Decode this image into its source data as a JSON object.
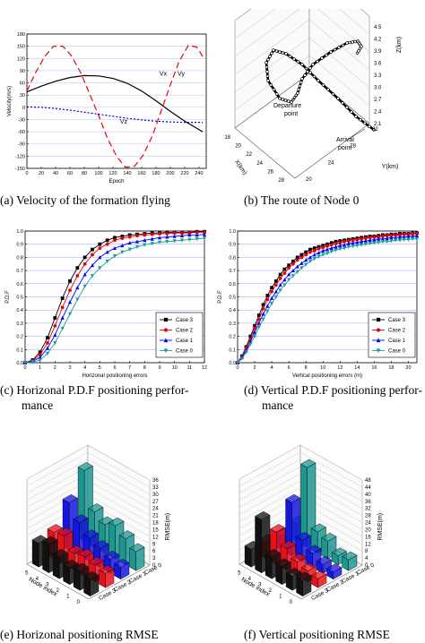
{
  "captions": {
    "a": "(a) Velocity of the formation flying",
    "b": "(b) The route of Node 0",
    "c1": "(c) Horizonal P.D.F positioning perfor-",
    "c2": "mance",
    "d1": "(d) Vertical P.D.F positioning perfor-",
    "d2": "mance",
    "e": "(e) Horizonal positioning RMSE",
    "f": "(f) Vertical positioning RMSE"
  },
  "chart_data": [
    {
      "id": "a",
      "type": "line",
      "xlabel": "Epoch",
      "ylabel": "Velocity(m/s)",
      "xlim": [
        0,
        250
      ],
      "ylim": [
        -150,
        180
      ],
      "xticks": [
        0,
        20,
        40,
        60,
        80,
        100,
        120,
        140,
        160,
        180,
        200,
        220,
        240
      ],
      "yticks": [
        -150,
        -120,
        -90,
        -60,
        -30,
        0,
        30,
        60,
        90,
        120,
        150,
        180
      ],
      "series": [
        {
          "name": "Vx",
          "color": "#000000",
          "dash": "",
          "x": [
            0,
            20,
            40,
            60,
            80,
            100,
            120,
            140,
            160,
            180,
            200,
            220,
            245
          ],
          "y": [
            38,
            52,
            64,
            73,
            78,
            77,
            71,
            59,
            40,
            16,
            -10,
            -34,
            -60
          ]
        },
        {
          "name": "Vy",
          "color": "#e8000b",
          "dash": "7,4",
          "x": [
            0,
            12,
            25,
            37,
            50,
            62,
            75,
            87,
            100,
            112,
            125,
            137,
            150,
            162,
            175,
            187,
            200,
            212,
            225,
            237,
            245
          ],
          "y": [
            40,
            85,
            125,
            150,
            150,
            127,
            85,
            35,
            -20,
            -75,
            -120,
            -147,
            -145,
            -118,
            -70,
            -10,
            55,
            112,
            152,
            148,
            125
          ]
        },
        {
          "name": "Vz",
          "color": "#0000cc",
          "dash": "2,2",
          "x": [
            0,
            20,
            40,
            60,
            80,
            100,
            120,
            140,
            160,
            180,
            200,
            220,
            245
          ],
          "y": [
            1,
            0,
            -3,
            -7,
            -12,
            -17,
            -22,
            -27,
            -31,
            -34,
            -36,
            -37,
            -37
          ]
        }
      ],
      "labels": [
        {
          "text": "Vx",
          "x": 190,
          "y": 78
        },
        {
          "text": "Vy",
          "x": 215,
          "y": 78
        },
        {
          "text": "Vz",
          "x": 135,
          "y": -40
        }
      ]
    },
    {
      "id": "b",
      "type": "line3d",
      "xlabel": "X(km)",
      "ylabel": "Y(km)",
      "zlabel": "Z(km)",
      "xticks": [
        "18",
        "20",
        "22",
        "24",
        "26",
        "28"
      ],
      "yticks": [
        "20",
        "24",
        "28",
        "32"
      ],
      "zticks": [
        "2.1",
        "2.4",
        "2.7",
        "3.0",
        "3.3",
        "3.6",
        "3.9",
        "4.2",
        "4.5"
      ],
      "annotations": [
        "Departure point",
        "Arrival point"
      ]
    },
    {
      "id": "c",
      "type": "line",
      "xlabel": "Horizonal positioning errors",
      "ylabel": "P.D.F",
      "xlim": [
        0,
        12
      ],
      "ylim": [
        0,
        1
      ],
      "xticks": [
        0,
        1,
        2,
        3,
        4,
        5,
        6,
        7,
        8,
        9,
        10,
        11,
        12
      ],
      "yticks": [
        0.0,
        0.1,
        0.2,
        0.3,
        0.4,
        0.5,
        0.6,
        0.7,
        0.8,
        0.9,
        1.0
      ],
      "x": [
        0,
        0.5,
        1,
        1.5,
        2,
        2.5,
        3,
        3.5,
        4,
        4.5,
        5,
        5.5,
        6,
        6.5,
        7,
        7.5,
        8,
        8.5,
        9,
        9.5,
        10,
        10.5,
        11,
        11.5,
        12
      ],
      "series": [
        {
          "name": "Case 3",
          "color": "#000000",
          "marker": "square",
          "values": [
            0,
            0.02,
            0.08,
            0.19,
            0.34,
            0.49,
            0.62,
            0.72,
            0.8,
            0.86,
            0.9,
            0.93,
            0.95,
            0.96,
            0.97,
            0.975,
            0.98,
            0.985,
            0.985,
            0.99,
            0.99,
            0.99,
            0.99,
            0.995,
            0.995
          ]
        },
        {
          "name": "Case 2",
          "color": "#e8000b",
          "marker": "circle",
          "values": [
            0,
            0.015,
            0.06,
            0.15,
            0.28,
            0.42,
            0.55,
            0.66,
            0.75,
            0.82,
            0.87,
            0.9,
            0.93,
            0.945,
            0.955,
            0.965,
            0.97,
            0.975,
            0.98,
            0.98,
            0.985,
            0.985,
            0.985,
            0.99,
            0.99
          ]
        },
        {
          "name": "Case 1",
          "color": "#0000ff",
          "marker": "triangle",
          "values": [
            0,
            0.01,
            0.04,
            0.11,
            0.21,
            0.34,
            0.46,
            0.57,
            0.67,
            0.74,
            0.8,
            0.84,
            0.87,
            0.89,
            0.91,
            0.92,
            0.93,
            0.94,
            0.95,
            0.955,
            0.96,
            0.965,
            0.97,
            0.97,
            0.975
          ]
        },
        {
          "name": "Case 0",
          "color": "#1a9c9c",
          "marker": "tridown",
          "values": [
            0,
            0.005,
            0.02,
            0.07,
            0.15,
            0.26,
            0.37,
            0.48,
            0.58,
            0.66,
            0.72,
            0.77,
            0.81,
            0.84,
            0.86,
            0.88,
            0.895,
            0.905,
            0.915,
            0.92,
            0.925,
            0.93,
            0.935,
            0.94,
            0.945
          ]
        }
      ]
    },
    {
      "id": "d",
      "type": "line",
      "xlabel": "Vertical positioning errors (m)",
      "ylabel": "P.D.F",
      "xlim": [
        0,
        21
      ],
      "ylim": [
        0,
        1
      ],
      "xticks": [
        0,
        2,
        4,
        6,
        8,
        10,
        12,
        14,
        16,
        18,
        20
      ],
      "yticks": [
        0.0,
        0.1,
        0.2,
        0.3,
        0.4,
        0.5,
        0.6,
        0.7,
        0.8,
        0.9,
        1.0
      ],
      "x": [
        0,
        0.5,
        1,
        1.5,
        2,
        2.5,
        3,
        3.5,
        4,
        4.5,
        5,
        5.5,
        6,
        6.5,
        7,
        7.5,
        8,
        8.5,
        9,
        9.5,
        10,
        10.5,
        11,
        11.5,
        12,
        12.5,
        13,
        13.5,
        14,
        14.5,
        15,
        15.5,
        16,
        16.5,
        17,
        17.5,
        18,
        18.5,
        19,
        19.5,
        20,
        20.5,
        21
      ],
      "series": [
        {
          "name": "Case 3",
          "color": "#000000",
          "marker": "square",
          "values": [
            0,
            0.05,
            0.12,
            0.2,
            0.28,
            0.36,
            0.44,
            0.51,
            0.57,
            0.62,
            0.67,
            0.71,
            0.74,
            0.77,
            0.8,
            0.82,
            0.84,
            0.86,
            0.87,
            0.88,
            0.89,
            0.9,
            0.91,
            0.92,
            0.925,
            0.93,
            0.935,
            0.94,
            0.945,
            0.95,
            0.955,
            0.96,
            0.96,
            0.965,
            0.97,
            0.97,
            0.975,
            0.975,
            0.98,
            0.98,
            0.98,
            0.985,
            0.985
          ]
        },
        {
          "name": "Case 2",
          "color": "#e8000b",
          "marker": "circle",
          "values": [
            0,
            0.045,
            0.11,
            0.18,
            0.26,
            0.33,
            0.41,
            0.48,
            0.54,
            0.59,
            0.64,
            0.68,
            0.72,
            0.75,
            0.78,
            0.8,
            0.82,
            0.84,
            0.85,
            0.865,
            0.875,
            0.885,
            0.895,
            0.905,
            0.91,
            0.92,
            0.925,
            0.93,
            0.935,
            0.94,
            0.945,
            0.95,
            0.955,
            0.955,
            0.96,
            0.965,
            0.965,
            0.97,
            0.97,
            0.975,
            0.975,
            0.98,
            0.98
          ]
        },
        {
          "name": "Case 1",
          "color": "#0000ff",
          "marker": "triangle",
          "values": [
            0,
            0.04,
            0.09,
            0.16,
            0.23,
            0.3,
            0.37,
            0.43,
            0.49,
            0.54,
            0.59,
            0.63,
            0.67,
            0.7,
            0.73,
            0.755,
            0.78,
            0.8,
            0.82,
            0.835,
            0.85,
            0.86,
            0.87,
            0.88,
            0.89,
            0.895,
            0.905,
            0.91,
            0.915,
            0.92,
            0.925,
            0.93,
            0.935,
            0.94,
            0.94,
            0.945,
            0.95,
            0.95,
            0.955,
            0.955,
            0.96,
            0.96,
            0.965
          ]
        },
        {
          "name": "Case 0",
          "color": "#1a9c9c",
          "marker": "tridown",
          "values": [
            0,
            0.03,
            0.08,
            0.14,
            0.2,
            0.27,
            0.33,
            0.39,
            0.45,
            0.5,
            0.55,
            0.59,
            0.63,
            0.66,
            0.69,
            0.72,
            0.745,
            0.77,
            0.79,
            0.805,
            0.82,
            0.83,
            0.845,
            0.855,
            0.865,
            0.87,
            0.88,
            0.885,
            0.89,
            0.895,
            0.9,
            0.905,
            0.91,
            0.915,
            0.92,
            0.92,
            0.925,
            0.93,
            0.93,
            0.935,
            0.935,
            0.94,
            0.94
          ]
        }
      ]
    },
    {
      "id": "e",
      "type": "bar3d",
      "xlabel": "Node index",
      "zlabel": "RMSE(m)",
      "zticks": [
        "0",
        "3",
        "6",
        "9",
        "12",
        "15",
        "18",
        "21",
        "24",
        "27",
        "30",
        "33",
        "36"
      ],
      "zmax": 36,
      "nodes": [
        "0",
        "1",
        "2",
        "3",
        "4",
        "5"
      ],
      "cases": [
        {
          "name": "Case 3",
          "color": "#111111",
          "values": [
            7,
            8,
            7,
            9,
            12,
            10
          ]
        },
        {
          "name": "Case 2",
          "color": "#e8101a",
          "values": [
            6,
            7,
            8,
            7,
            12,
            11
          ]
        },
        {
          "name": "Case 1",
          "color": "#1515e0",
          "values": [
            5,
            6,
            8,
            10,
            14,
            20
          ]
        },
        {
          "name": "Case 0",
          "color": "#1d9690",
          "values": [
            8,
            11,
            14,
            12,
            15,
            30
          ]
        }
      ]
    },
    {
      "id": "f",
      "type": "bar3d",
      "xlabel": "Node index",
      "zlabel": "RMSE(m)",
      "zticks": [
        "0",
        "4",
        "8",
        "12",
        "16",
        "20",
        "24",
        "28",
        "32",
        "36",
        "40",
        "44",
        "48"
      ],
      "zmax": 48,
      "nodes": [
        "0",
        "1",
        "2",
        "3",
        "4",
        "5"
      ],
      "cases": [
        {
          "name": "Case 3",
          "color": "#111111",
          "values": [
            9,
            8,
            10,
            12,
            30,
            10
          ]
        },
        {
          "name": "Case 2",
          "color": "#e8101a",
          "values": [
            5,
            6,
            8,
            12,
            18,
            9
          ]
        },
        {
          "name": "Case 1",
          "color": "#1515e0",
          "values": [
            4,
            5,
            8,
            12,
            30,
            8
          ]
        },
        {
          "name": "Case 0",
          "color": "#1d9690",
          "values": [
            6,
            5,
            10,
            12,
            45,
            10
          ]
        }
      ]
    }
  ]
}
